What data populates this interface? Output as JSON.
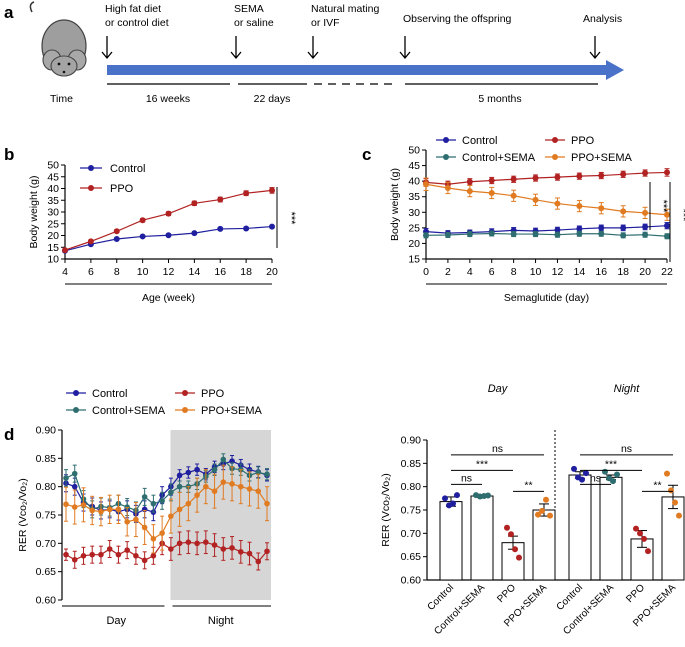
{
  "figure": {
    "panel_labels": [
      "a",
      "b",
      "c",
      "d"
    ],
    "timeline": {
      "mouse_icon": "mouse-icon",
      "time_label": "Time",
      "events": [
        {
          "label_line1": "High fat diet",
          "label_line2": "or control diet"
        },
        {
          "label_line1": "SEMA",
          "label_line2": "or saline"
        },
        {
          "label_line1": "Natural mating",
          "label_line2": "or IVF"
        },
        {
          "label_line1": "Observing the  offspring",
          "label_line2": ""
        },
        {
          "label_line1": "Analysis",
          "label_line2": ""
        }
      ],
      "durations": [
        "16 weeks",
        "22 days",
        "5 months"
      ],
      "arrow_color": "#4a72c8"
    }
  },
  "chart_data": [
    {
      "id": "b",
      "type": "line",
      "xlabel": "Age (week)",
      "ylabel": "Body weight  (g)",
      "xlim": [
        4,
        20
      ],
      "ylim": [
        10,
        50
      ],
      "xticks": [
        4,
        6,
        8,
        10,
        12,
        14,
        16,
        18,
        20
      ],
      "yticks": [
        10,
        15,
        20,
        25,
        30,
        35,
        40,
        45,
        50
      ],
      "x": [
        4,
        6,
        8,
        10,
        12,
        14,
        16,
        18,
        20
      ],
      "series": [
        {
          "name": "Control",
          "color": "#1f1fa0",
          "values": [
            13.5,
            16.3,
            18.5,
            19.6,
            20.1,
            21.0,
            22.8,
            23.0,
            23.8
          ],
          "err": [
            0.3,
            0.4,
            0.4,
            0.4,
            0.4,
            0.4,
            0.5,
            0.5,
            0.5
          ]
        },
        {
          "name": "PPO",
          "color": "#b22222",
          "values": [
            13.8,
            17.5,
            21.8,
            26.5,
            29.3,
            33.7,
            35.3,
            38.0,
            39.2
          ],
          "err": [
            0.4,
            0.5,
            0.5,
            0.7,
            0.8,
            0.9,
            1.0,
            1.0,
            1.2
          ]
        }
      ],
      "legend": "top-left",
      "significance": "***"
    },
    {
      "id": "c",
      "type": "line",
      "xlabel": "Semaglutide (day)",
      "ylabel": "Body weight  (g)",
      "xlim": [
        0,
        22
      ],
      "ylim": [
        15,
        50
      ],
      "xticks": [
        0,
        2,
        4,
        6,
        8,
        10,
        12,
        14,
        16,
        18,
        20,
        22
      ],
      "yticks": [
        15,
        20,
        25,
        30,
        35,
        40,
        45,
        50
      ],
      "x": [
        0,
        2,
        4,
        6,
        8,
        10,
        12,
        14,
        16,
        18,
        20,
        22
      ],
      "series": [
        {
          "name": "Control",
          "color": "#1f1fa0",
          "values": [
            23.8,
            23.3,
            23.5,
            23.8,
            24.2,
            24.0,
            24.3,
            24.7,
            25.0,
            25.0,
            25.3,
            25.7
          ],
          "err": [
            1.0,
            0.8,
            0.8,
            0.9,
            0.9,
            0.9,
            0.9,
            0.9,
            0.9,
            0.9,
            0.9,
            1.0
          ]
        },
        {
          "name": "PPO",
          "color": "#b22222",
          "values": [
            39.6,
            39.0,
            39.8,
            40.2,
            40.6,
            41.0,
            41.3,
            41.6,
            41.8,
            42.2,
            42.6,
            42.8
          ],
          "err": [
            1.2,
            1.0,
            1.0,
            1.0,
            1.0,
            1.0,
            1.0,
            1.0,
            1.0,
            1.0,
            1.0,
            1.2
          ]
        },
        {
          "name": "Control+SEMA",
          "color": "#2e6e70",
          "values": [
            22.6,
            22.7,
            23.0,
            23.2,
            23.0,
            23.0,
            22.8,
            23.1,
            23.1,
            22.6,
            22.8,
            22.3
          ],
          "err": [
            0.8,
            0.8,
            0.8,
            0.8,
            0.8,
            0.8,
            0.8,
            0.8,
            0.8,
            0.8,
            0.8,
            0.8
          ]
        },
        {
          "name": "PPO+SEMA",
          "color": "#e07b22",
          "values": [
            39.0,
            37.8,
            36.8,
            36.2,
            35.3,
            34.0,
            32.8,
            32.0,
            31.3,
            30.3,
            29.8,
            29.2
          ],
          "err": [
            2.0,
            1.8,
            1.8,
            1.8,
            1.8,
            1.8,
            1.8,
            1.8,
            1.8,
            1.8,
            1.8,
            1.8
          ]
        }
      ],
      "legend": "top",
      "significance": [
        "***",
        "***"
      ]
    },
    {
      "id": "d-left",
      "type": "line",
      "ylabel": "RER  (Vco₂/Vo₂)",
      "ylim": [
        0.6,
        0.9
      ],
      "yticks": [
        "0.60",
        "0.65",
        "0.70",
        "0.75",
        "0.80",
        "0.85",
        "0.90"
      ],
      "period_labels": [
        "Day",
        "Night"
      ],
      "n_points": 24,
      "series": [
        {
          "name": "Control",
          "color": "#1f1fa0",
          "values": [
            0.806,
            0.8,
            0.772,
            0.765,
            0.758,
            0.76,
            0.756,
            0.76,
            0.752,
            0.76,
            0.755,
            0.785,
            0.8,
            0.82,
            0.825,
            0.83,
            0.822,
            0.835,
            0.84,
            0.845,
            0.838,
            0.83,
            0.826,
            0.82
          ],
          "err": [
            0.015,
            0.015,
            0.015,
            0.015,
            0.015,
            0.015,
            0.015,
            0.015,
            0.015,
            0.015,
            0.015,
            0.015,
            0.015,
            0.01,
            0.01,
            0.01,
            0.01,
            0.01,
            0.01,
            0.01,
            0.01,
            0.01,
            0.01,
            0.01
          ]
        },
        {
          "name": "PPO",
          "color": "#b22222",
          "values": [
            0.68,
            0.671,
            0.678,
            0.68,
            0.68,
            0.69,
            0.68,
            0.688,
            0.678,
            0.67,
            0.678,
            0.7,
            0.69,
            0.7,
            0.702,
            0.7,
            0.702,
            0.697,
            0.69,
            0.692,
            0.685,
            0.682,
            0.668,
            0.686
          ],
          "err": [
            0.01,
            0.015,
            0.015,
            0.015,
            0.015,
            0.015,
            0.015,
            0.015,
            0.015,
            0.015,
            0.015,
            0.02,
            0.02,
            0.02,
            0.02,
            0.02,
            0.02,
            0.02,
            0.02,
            0.02,
            0.02,
            0.02,
            0.015,
            0.015
          ]
        },
        {
          "name": "Control+SEMA",
          "color": "#2e6e70",
          "values": [
            0.815,
            0.823,
            0.778,
            0.76,
            0.765,
            0.763,
            0.77,
            0.764,
            0.758,
            0.782,
            0.77,
            0.775,
            0.79,
            0.8,
            0.8,
            0.805,
            0.818,
            0.83,
            0.848,
            0.832,
            0.83,
            0.82,
            0.825,
            0.822
          ],
          "err": [
            0.015,
            0.015,
            0.015,
            0.015,
            0.015,
            0.015,
            0.015,
            0.015,
            0.015,
            0.015,
            0.015,
            0.015,
            0.015,
            0.01,
            0.01,
            0.01,
            0.01,
            0.01,
            0.01,
            0.01,
            0.01,
            0.01,
            0.01,
            0.01
          ]
        },
        {
          "name": "PPO+SEMA",
          "color": "#e07b22",
          "values": [
            0.769,
            0.764,
            0.768,
            0.758,
            0.756,
            0.76,
            0.76,
            0.738,
            0.742,
            0.728,
            0.708,
            0.718,
            0.748,
            0.76,
            0.77,
            0.785,
            0.8,
            0.792,
            0.808,
            0.805,
            0.8,
            0.796,
            0.792,
            0.77
          ],
          "err": [
            0.03,
            0.03,
            0.03,
            0.025,
            0.025,
            0.025,
            0.025,
            0.025,
            0.03,
            0.03,
            0.025,
            0.03,
            0.03,
            0.03,
            0.03,
            0.03,
            0.03,
            0.03,
            0.03,
            0.03,
            0.03,
            0.03,
            0.03,
            0.03
          ]
        }
      ],
      "legend": "top"
    },
    {
      "id": "d-right",
      "type": "bar",
      "ylabel": "RER  (Vco₂/Vo₂)",
      "ylim": [
        0.6,
        0.9
      ],
      "yticks": [
        "0.60",
        "0.65",
        "0.70",
        "0.75",
        "0.80",
        "0.85",
        "0.90"
      ],
      "groups": [
        {
          "title": "Day",
          "categories": [
            "Control",
            "Control+SEMA",
            "PPO",
            "PPO+SEMA"
          ],
          "values": [
            0.768,
            0.78,
            0.68,
            0.75
          ],
          "err": [
            0.01,
            0.003,
            0.014,
            0.013
          ],
          "points": [
            [
              0.775,
              0.76,
              0.764,
              0.782
            ],
            [
              0.782,
              0.779,
              0.78,
              0.781
            ],
            [
              0.712,
              0.698,
              0.666,
              0.648
            ],
            [
              0.74,
              0.748,
              0.772,
              0.738
            ]
          ],
          "significance": [
            {
              "pair": [
                0,
                3
              ],
              "label": "ns"
            },
            {
              "pair": [
                0,
                2
              ],
              "label": "***"
            },
            {
              "pair": [
                0,
                1
              ],
              "label": "ns"
            },
            {
              "pair": [
                2,
                3
              ],
              "label": "**"
            }
          ]
        },
        {
          "title": "Night",
          "categories": [
            "Control",
            "Control+SEMA",
            "PPO",
            "PPO+SEMA"
          ],
          "values": [
            0.825,
            0.82,
            0.688,
            0.778
          ],
          "err": [
            0.007,
            0.005,
            0.018,
            0.025
          ],
          "points": [
            [
              0.838,
              0.82,
              0.815,
              0.829
            ],
            [
              0.832,
              0.818,
              0.812,
              0.826
            ],
            [
              0.71,
              0.7,
              0.688,
              0.662
            ],
            [
              0.828,
              0.792,
              0.766,
              0.738
            ]
          ],
          "significance": [
            {
              "pair": [
                0,
                3
              ],
              "label": "ns"
            },
            {
              "pair": [
                0,
                2
              ],
              "label": "***"
            },
            {
              "pair": [
                0,
                1
              ],
              "label": "ns"
            },
            {
              "pair": [
                2,
                3
              ],
              "label": "**"
            }
          ]
        }
      ],
      "colors": [
        "#1f1fa0",
        "#2e6e70",
        "#b22222",
        "#e07b22"
      ]
    }
  ]
}
